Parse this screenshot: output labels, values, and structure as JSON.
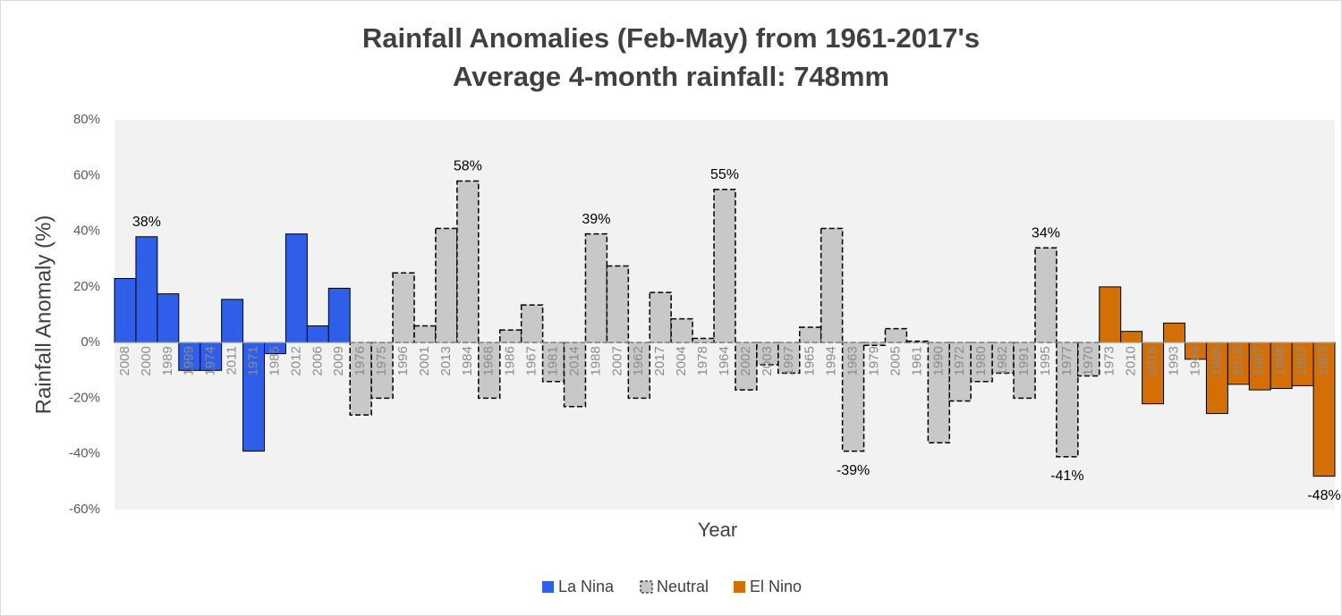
{
  "chart_data": {
    "type": "bar",
    "title": "Rainfall Anomalies (Feb-May) from 1961-2017's",
    "subtitle": "Average 4-month rainfall: 748mm",
    "x_label": "Year",
    "y_label": "Rainfall Anomaly (%)",
    "categories": [
      "2008",
      "2000",
      "1989",
      "1999",
      "1974",
      "2011",
      "1971",
      "1985",
      "2012",
      "2006",
      "2009",
      "1976",
      "1975",
      "1996",
      "2001",
      "2013",
      "1984",
      "1968",
      "1986",
      "1967",
      "1981",
      "2014",
      "1988",
      "2007",
      "1962",
      "2017",
      "2004",
      "1978",
      "1964",
      "2002",
      "2003",
      "1997",
      "1965",
      "1994",
      "1963",
      "1979",
      "2005",
      "1961",
      "1990",
      "1972",
      "1980",
      "1982",
      "1991",
      "1995",
      "1977",
      "1970",
      "1973",
      "2010",
      "2015",
      "1993",
      "1969",
      "1966",
      "2016",
      "1987",
      "1998",
      "1992",
      "1983"
    ],
    "series": [
      {
        "name": "La Nina",
        "color": "#2f5ee8",
        "dashed": false,
        "values": [
          23,
          38,
          17.5,
          -10,
          -10,
          15.5,
          -39,
          -4,
          39,
          6,
          19.5,
          null,
          null,
          null,
          null,
          null,
          null,
          null,
          null,
          null,
          null,
          null,
          null,
          null,
          null,
          null,
          null,
          null,
          null,
          null,
          null,
          null,
          null,
          null,
          null,
          null,
          null,
          null,
          null,
          null,
          null,
          null,
          null,
          null,
          null,
          null,
          null,
          null,
          null,
          null,
          null,
          null,
          null,
          null,
          null,
          null,
          null
        ],
        "value_labels": [
          null,
          "38%",
          null,
          null,
          null,
          null,
          null,
          null,
          null,
          null,
          null,
          null,
          null,
          null,
          null,
          null,
          null,
          null,
          null,
          null,
          null,
          null,
          null,
          null,
          null,
          null,
          null,
          null,
          null,
          null,
          null,
          null,
          null,
          null,
          null,
          null,
          null,
          null,
          null,
          null,
          null,
          null,
          null,
          null,
          null,
          null,
          null,
          null,
          null,
          null,
          null,
          null,
          null,
          null,
          null,
          null,
          null
        ]
      },
      {
        "name": "Neutral",
        "color": "#c8c8c8",
        "dashed": true,
        "values": [
          null,
          null,
          null,
          null,
          null,
          null,
          null,
          null,
          null,
          null,
          null,
          -26,
          -20,
          25,
          6,
          41,
          58,
          -20,
          4.5,
          13.5,
          -14,
          -23,
          39,
          27.5,
          -20,
          18,
          8.5,
          1.5,
          55,
          -17,
          -8,
          -11,
          5.5,
          41,
          -39,
          -1,
          5,
          0.5,
          -36,
          -21,
          -14,
          -11,
          -20,
          34,
          -41,
          -12,
          null,
          null,
          null,
          null,
          null,
          null,
          null,
          null,
          null,
          null,
          null
        ],
        "value_labels": [
          null,
          null,
          null,
          null,
          null,
          null,
          null,
          null,
          null,
          null,
          null,
          null,
          null,
          null,
          null,
          null,
          "58%",
          null,
          null,
          null,
          null,
          null,
          "39%",
          null,
          null,
          null,
          null,
          null,
          "55%",
          null,
          null,
          null,
          null,
          null,
          "-39%",
          null,
          null,
          null,
          null,
          null,
          null,
          null,
          null,
          "34%",
          "-41%",
          null,
          null,
          null,
          null,
          null,
          null,
          null,
          null,
          null,
          null,
          null,
          null
        ]
      },
      {
        "name": "El Nino",
        "color": "#d46f06",
        "dashed": false,
        "values": [
          null,
          null,
          null,
          null,
          null,
          null,
          null,
          null,
          null,
          null,
          null,
          null,
          null,
          null,
          null,
          null,
          null,
          null,
          null,
          null,
          null,
          null,
          null,
          null,
          null,
          null,
          null,
          null,
          null,
          null,
          null,
          null,
          null,
          null,
          null,
          null,
          null,
          null,
          null,
          null,
          null,
          null,
          null,
          null,
          null,
          null,
          20,
          4,
          -22,
          7,
          -6,
          -25.5,
          -15,
          -17,
          -16.5,
          -15.5,
          -48
        ],
        "value_labels": [
          null,
          null,
          null,
          null,
          null,
          null,
          null,
          null,
          null,
          null,
          null,
          null,
          null,
          null,
          null,
          null,
          null,
          null,
          null,
          null,
          null,
          null,
          null,
          null,
          null,
          null,
          null,
          null,
          null,
          null,
          null,
          null,
          null,
          null,
          null,
          null,
          null,
          null,
          null,
          null,
          null,
          null,
          null,
          null,
          null,
          null,
          null,
          null,
          null,
          null,
          null,
          null,
          null,
          null,
          null,
          null,
          "-48%"
        ]
      }
    ],
    "ylim": [
      -60,
      80
    ],
    "yticks": [
      {
        "value": -60,
        "label": "-60%"
      },
      {
        "value": -40,
        "label": "-40%"
      },
      {
        "value": -20,
        "label": "-20%"
      },
      {
        "value": 0,
        "label": "0%"
      },
      {
        "value": 20,
        "label": "20%"
      },
      {
        "value": 40,
        "label": "40%"
      },
      {
        "value": 60,
        "label": "60%"
      },
      {
        "value": 80,
        "label": "80%"
      }
    ],
    "grid": false
  }
}
